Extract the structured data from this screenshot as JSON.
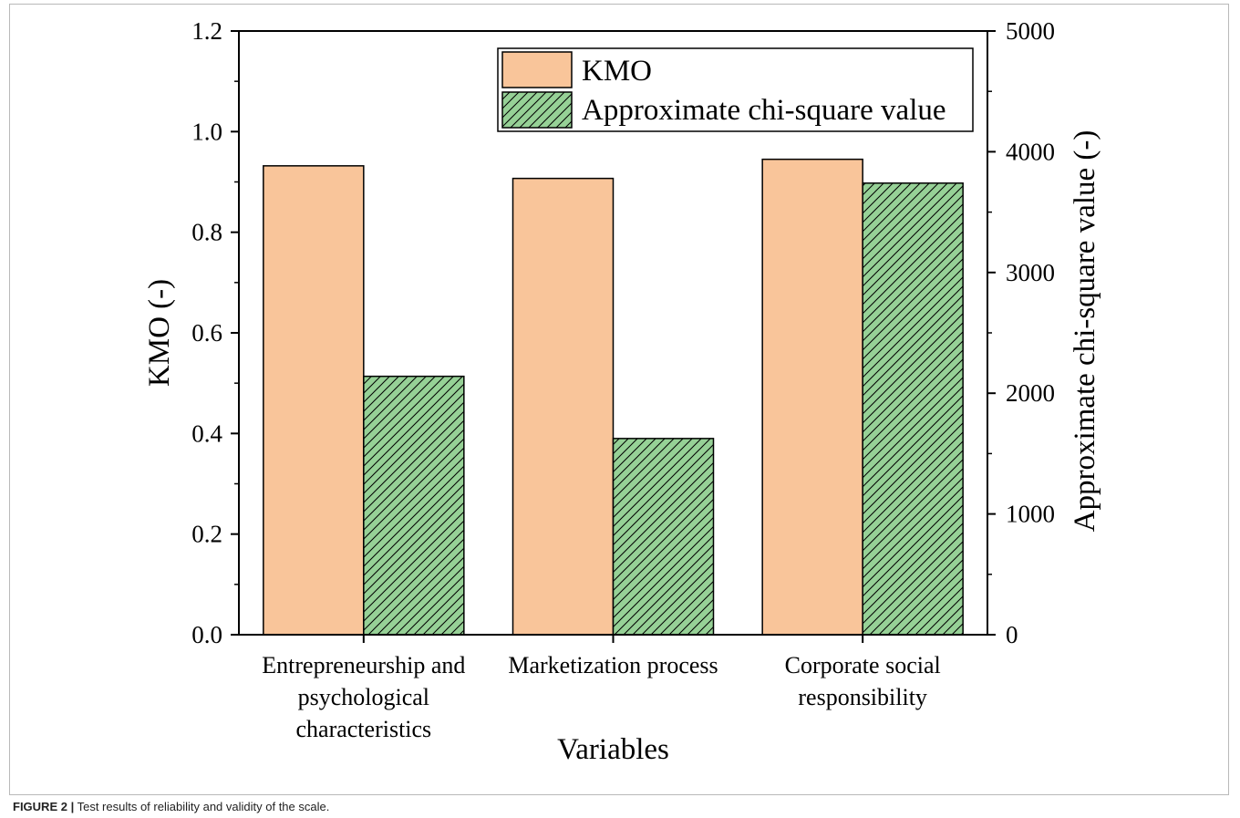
{
  "figure": {
    "label": "FIGURE 2 |",
    "caption": "Test results of reliability and validity of the scale."
  },
  "colors": {
    "kmo_fill": "#f9c59a",
    "chi_fill": "#96d196",
    "stroke": "#000000"
  },
  "chart_data": {
    "type": "bar",
    "categories": [
      [
        "Entrepreneurship and",
        "psychological",
        "characteristics"
      ],
      [
        "Marketization process"
      ],
      [
        "Corporate social",
        "responsibility"
      ]
    ],
    "xlabel": "Variables",
    "ylabel": "KMO (-)",
    "y2label": "Approximate chi-square value (-)",
    "ylim": [
      0,
      1.2
    ],
    "y2lim": [
      0,
      5000
    ],
    "yticks": [
      "0.0",
      "0.2",
      "0.4",
      "0.6",
      "0.8",
      "1.0",
      "1.2"
    ],
    "y2ticks": [
      "0",
      "1000",
      "2000",
      "3000",
      "4000",
      "5000"
    ],
    "series": [
      {
        "name": "KMO",
        "axis": "left",
        "pattern": "solid",
        "values": [
          0.932,
          0.907,
          0.945
        ]
      },
      {
        "name": "Approximate chi-square value",
        "axis": "right",
        "pattern": "hatched",
        "values": [
          2140,
          1625,
          3740
        ]
      }
    ],
    "legend": "top-right",
    "grid": false
  }
}
